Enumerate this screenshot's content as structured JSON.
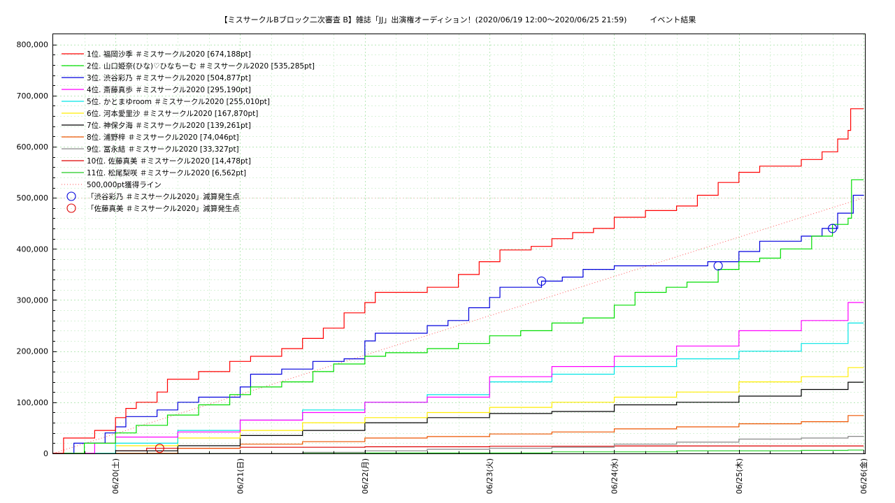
{
  "chart_data": {
    "type": "line",
    "title": "【ミスサークルBブロック二次審査 B】雑誌「JJ」出演権オーディション！(2020/06/19 12:00～2020/06/25 21:59)　　　イベント結果",
    "xlabel": "",
    "ylabel": "",
    "x_ticks": [
      "06/20(土)",
      "06/21(日)",
      "06/22(月)",
      "06/23(火)",
      "06/24(水)",
      "06/25(木)",
      "06/26(金)"
    ],
    "xlim": [
      "2020-06-19 12:00",
      "2020-06-26 00:15"
    ],
    "ylim": [
      0,
      820000
    ],
    "y_ticks": [
      "0",
      "100,000",
      "200,000",
      "300,000",
      "400,000",
      "500,000",
      "600,000",
      "700,000",
      "800,000"
    ],
    "grid": true,
    "legend_position": "top-left",
    "series": [
      {
        "name": "1位. 福岡沙季 ＃ミスサークル2020 [674,188pt]",
        "color": "#ff0000",
        "points": [
          [
            "06/19 12:00",
            0
          ],
          [
            "06/19 14:00",
            30000
          ],
          [
            "06/19 20:00",
            45000
          ],
          [
            "06/20 00:00",
            70000
          ],
          [
            "06/20 02:00",
            88000
          ],
          [
            "06/20 04:00",
            100000
          ],
          [
            "06/20 08:00",
            120000
          ],
          [
            "06/20 10:00",
            145000
          ],
          [
            "06/20 16:00",
            160000
          ],
          [
            "06/20 22:00",
            180000
          ],
          [
            "06/21 02:00",
            190000
          ],
          [
            "06/21 08:00",
            205000
          ],
          [
            "06/21 12:00",
            225000
          ],
          [
            "06/21 16:00",
            245000
          ],
          [
            "06/21 20:00",
            275000
          ],
          [
            "06/22 00:00",
            295000
          ],
          [
            "06/22 02:00",
            315000
          ],
          [
            "06/22 12:00",
            325000
          ],
          [
            "06/22 18:00",
            350000
          ],
          [
            "06/22 22:00",
            375000
          ],
          [
            "06/23 02:00",
            398000
          ],
          [
            "06/23 08:00",
            405000
          ],
          [
            "06/23 12:00",
            420000
          ],
          [
            "06/23 16:00",
            432000
          ],
          [
            "06/23 20:00",
            440000
          ],
          [
            "06/24 00:00",
            462000
          ],
          [
            "06/24 06:00",
            475000
          ],
          [
            "06/24 12:00",
            484000
          ],
          [
            "06/24 16:00",
            505000
          ],
          [
            "06/24 20:00",
            530000
          ],
          [
            "06/25 00:00",
            550000
          ],
          [
            "06/25 04:00",
            562000
          ],
          [
            "06/25 12:00",
            575000
          ],
          [
            "06/25 16:00",
            590000
          ],
          [
            "06/25 19:00",
            615000
          ],
          [
            "06/25 21:00",
            632000
          ],
          [
            "06/25 21:30",
            674188
          ],
          [
            "06/26 00:00",
            674188
          ]
        ]
      },
      {
        "name": "2位. 山口姫奈(ひな)♡ひなちーむ ＃ミスサークル2020 [535,285pt]",
        "color": "#00dd00",
        "points": [
          [
            "06/19 12:00",
            0
          ],
          [
            "06/19 18:00",
            20000
          ],
          [
            "06/20 00:00",
            40000
          ],
          [
            "06/20 04:00",
            55000
          ],
          [
            "06/20 10:00",
            75000
          ],
          [
            "06/20 16:00",
            95000
          ],
          [
            "06/20 22:00",
            115000
          ],
          [
            "06/21 02:00",
            130000
          ],
          [
            "06/21 08:00",
            140000
          ],
          [
            "06/21 14:00",
            160000
          ],
          [
            "06/21 18:00",
            175000
          ],
          [
            "06/22 00:00",
            190000
          ],
          [
            "06/22 04:00",
            197000
          ],
          [
            "06/22 12:00",
            205000
          ],
          [
            "06/22 18:00",
            215000
          ],
          [
            "06/23 00:00",
            230000
          ],
          [
            "06/23 06:00",
            240000
          ],
          [
            "06/23 12:00",
            255000
          ],
          [
            "06/23 18:00",
            265000
          ],
          [
            "06/24 00:00",
            290000
          ],
          [
            "06/24 04:00",
            315000
          ],
          [
            "06/24 10:00",
            325000
          ],
          [
            "06/24 14:00",
            335000
          ],
          [
            "06/24 20:00",
            360000
          ],
          [
            "06/25 00:00",
            375000
          ],
          [
            "06/25 04:00",
            382000
          ],
          [
            "06/25 08:00",
            400000
          ],
          [
            "06/25 14:00",
            425000
          ],
          [
            "06/25 18:00",
            448000
          ],
          [
            "06/25 21:00",
            460000
          ],
          [
            "06/25 21:40",
            535285
          ],
          [
            "06/26 00:00",
            535285
          ]
        ]
      },
      {
        "name": "3位. 渋谷彩乃 ＃ミスサークル2020 [504,877pt]",
        "color": "#0000dd",
        "points": [
          [
            "06/19 12:00",
            0
          ],
          [
            "06/19 16:00",
            20000
          ],
          [
            "06/19 22:00",
            40000
          ],
          [
            "06/20 00:00",
            52000
          ],
          [
            "06/20 02:00",
            72000
          ],
          [
            "06/20 08:00",
            85000
          ],
          [
            "06/20 12:00",
            100000
          ],
          [
            "06/20 16:00",
            110000
          ],
          [
            "06/21 00:00",
            130000
          ],
          [
            "06/21 02:00",
            155000
          ],
          [
            "06/21 08:00",
            165000
          ],
          [
            "06/21 14:00",
            180000
          ],
          [
            "06/21 20:00",
            185000
          ],
          [
            "06/22 00:00",
            220000
          ],
          [
            "06/22 02:00",
            235000
          ],
          [
            "06/22 12:00",
            250000
          ],
          [
            "06/22 16:00",
            260000
          ],
          [
            "06/22 20:00",
            285000
          ],
          [
            "06/23 00:00",
            305000
          ],
          [
            "06/23 02:00",
            325000
          ],
          [
            "06/23 10:00",
            337000
          ],
          [
            "06/23 14:00",
            345000
          ],
          [
            "06/23 18:00",
            360000
          ],
          [
            "06/24 00:00",
            367000
          ],
          [
            "06/24 18:00",
            375000
          ],
          [
            "06/25 00:00",
            395000
          ],
          [
            "06/25 04:00",
            415000
          ],
          [
            "06/25 12:00",
            425000
          ],
          [
            "06/25 16:00",
            440000
          ],
          [
            "06/25 19:00",
            470000
          ],
          [
            "06/25 22:00",
            505000
          ],
          [
            "06/26 00:00",
            504877
          ]
        ]
      },
      {
        "name": "4位. 斎藤真歩 ＃ミスサークル2020 [295,190pt]",
        "color": "#ff00ff",
        "points": [
          [
            "06/19 12:00",
            0
          ],
          [
            "06/19 20:00",
            20000
          ],
          [
            "06/20 00:00",
            32000
          ],
          [
            "06/20 12:00",
            42000
          ],
          [
            "06/21 00:00",
            65000
          ],
          [
            "06/21 12:00",
            80000
          ],
          [
            "06/22 00:00",
            100000
          ],
          [
            "06/22 12:00",
            110000
          ],
          [
            "06/23 00:00",
            150000
          ],
          [
            "06/23 12:00",
            170000
          ],
          [
            "06/24 00:00",
            190000
          ],
          [
            "06/24 12:00",
            210000
          ],
          [
            "06/25 00:00",
            240000
          ],
          [
            "06/25 12:00",
            260000
          ],
          [
            "06/25 21:00",
            295190
          ],
          [
            "06/26 00:00",
            295190
          ]
        ]
      },
      {
        "name": "5位. かとまゆroom ＃ミスサークル2020 [255,010pt]",
        "color": "#00e5e5",
        "points": [
          [
            "06/19 12:00",
            0
          ],
          [
            "06/20 00:00",
            20000
          ],
          [
            "06/20 12:00",
            45000
          ],
          [
            "06/21 00:00",
            65000
          ],
          [
            "06/21 12:00",
            85000
          ],
          [
            "06/22 00:00",
            100000
          ],
          [
            "06/22 12:00",
            115000
          ],
          [
            "06/23 00:00",
            140000
          ],
          [
            "06/23 12:00",
            155000
          ],
          [
            "06/24 00:00",
            170000
          ],
          [
            "06/24 12:00",
            185000
          ],
          [
            "06/25 00:00",
            200000
          ],
          [
            "06/25 12:00",
            215000
          ],
          [
            "06/25 21:00",
            255010
          ],
          [
            "06/26 00:00",
            255010
          ]
        ]
      },
      {
        "name": "6位. 河本愛里沙 ＃ミスサークル2020 [167,870pt]",
        "color": "#ffee00",
        "points": [
          [
            "06/19 12:00",
            0
          ],
          [
            "06/20 00:00",
            15000
          ],
          [
            "06/20 12:00",
            30000
          ],
          [
            "06/21 00:00",
            45000
          ],
          [
            "06/21 12:00",
            60000
          ],
          [
            "06/22 00:00",
            70000
          ],
          [
            "06/22 12:00",
            80000
          ],
          [
            "06/23 00:00",
            90000
          ],
          [
            "06/23 12:00",
            100000
          ],
          [
            "06/24 00:00",
            110000
          ],
          [
            "06/24 12:00",
            120000
          ],
          [
            "06/25 00:00",
            140000
          ],
          [
            "06/25 12:00",
            150000
          ],
          [
            "06/25 21:00",
            167870
          ],
          [
            "06/26 00:00",
            167870
          ]
        ]
      },
      {
        "name": "7位. 神保夕海 ＃ミスサークル2020 [139,261pt]",
        "color": "#000000",
        "points": [
          [
            "06/19 12:00",
            0
          ],
          [
            "06/20 00:00",
            5000
          ],
          [
            "06/20 12:00",
            15000
          ],
          [
            "06/21 00:00",
            35000
          ],
          [
            "06/21 12:00",
            45000
          ],
          [
            "06/22 00:00",
            60000
          ],
          [
            "06/22 12:00",
            70000
          ],
          [
            "06/23 00:00",
            78000
          ],
          [
            "06/23 12:00",
            82000
          ],
          [
            "06/24 00:00",
            95000
          ],
          [
            "06/24 12:00",
            100000
          ],
          [
            "06/25 00:00",
            112000
          ],
          [
            "06/25 12:00",
            125000
          ],
          [
            "06/25 21:00",
            139261
          ],
          [
            "06/26 00:00",
            139261
          ]
        ]
      },
      {
        "name": "8位. 浦野梓 ＃ミスサークル2020 [74,046pt]",
        "color": "#ee5500",
        "points": [
          [
            "06/19 12:00",
            0
          ],
          [
            "06/20 12:00",
            10000
          ],
          [
            "06/21 00:00",
            18000
          ],
          [
            "06/21 12:00",
            23000
          ],
          [
            "06/22 00:00",
            30000
          ],
          [
            "06/22 12:00",
            33000
          ],
          [
            "06/23 00:00",
            38000
          ],
          [
            "06/23 12:00",
            42000
          ],
          [
            "06/24 00:00",
            48000
          ],
          [
            "06/24 12:00",
            52000
          ],
          [
            "06/25 00:00",
            58000
          ],
          [
            "06/25 12:00",
            62000
          ],
          [
            "06/25 21:00",
            74046
          ],
          [
            "06/26 00:00",
            74046
          ]
        ]
      },
      {
        "name": "9位. 冨永結 ＃ミスサークル2020 [33,327pt]",
        "color": "#888888",
        "points": [
          [
            "06/19 12:00",
            0
          ],
          [
            "06/21 00:00",
            0
          ],
          [
            "06/21 12:00",
            2000
          ],
          [
            "06/22 00:00",
            5000
          ],
          [
            "06/22 12:00",
            8000
          ],
          [
            "06/23 00:00",
            10000
          ],
          [
            "06/23 12:00",
            12000
          ],
          [
            "06/24 00:00",
            18000
          ],
          [
            "06/24 12:00",
            22000
          ],
          [
            "06/25 00:00",
            28000
          ],
          [
            "06/25 12:00",
            30000
          ],
          [
            "06/25 21:00",
            33327
          ],
          [
            "06/26 00:00",
            33327
          ]
        ]
      },
      {
        "name": "10位. 佐藤真美 ＃ミスサークル2020 [14,478pt]",
        "color": "#dd0000",
        "points": [
          [
            "06/19 12:00",
            0
          ],
          [
            "06/20 00:00",
            5000
          ],
          [
            "06/20 06:00",
            10000
          ],
          [
            "06/21 00:00",
            12000
          ],
          [
            "06/22 00:00",
            13000
          ],
          [
            "06/23 00:00",
            14000
          ],
          [
            "06/24 00:00",
            14478
          ],
          [
            "06/26 00:00",
            14478
          ]
        ]
      },
      {
        "name": "11位. 松尾梨咲 ＃ミスサークル2020 [6,562pt]",
        "color": "#22cc22",
        "points": [
          [
            "06/19 12:00",
            0
          ],
          [
            "06/22 00:00",
            1000
          ],
          [
            "06/23 12:00",
            3000
          ],
          [
            "06/24 12:00",
            5000
          ],
          [
            "06/25 12:00",
            6000
          ],
          [
            "06/25 21:00",
            6562
          ],
          [
            "06/26 00:00",
            6562
          ]
        ]
      }
    ],
    "reference_line": {
      "name": "500,000pt獲得ライン",
      "color": "#ff5555",
      "from": [
        "06/19 12:00",
        0
      ],
      "to": [
        "06/26 00:00",
        500000
      ]
    },
    "markers": [
      {
        "name": "「渋谷彩乃 ＃ミスサークル2020」減算発生点",
        "color": "#0000dd",
        "points": [
          [
            "06/23 10:00",
            337000
          ],
          [
            "06/24 20:00",
            367000
          ],
          [
            "06/25 18:00",
            440000
          ]
        ]
      },
      {
        "name": "「佐藤真美 ＃ミスサークル2020」減算発生点",
        "color": "#dd0000",
        "points": [
          [
            "06/20 08:30",
            10000
          ]
        ]
      }
    ]
  }
}
